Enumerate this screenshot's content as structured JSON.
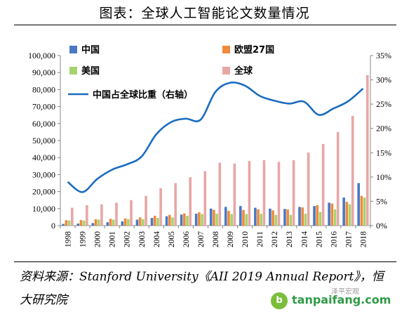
{
  "title": "图表：全球人工智能论文数量情况",
  "source": "资料来源：Stanford University《AII 2019 Annual Report》，恒大研究院",
  "watermark": {
    "text": "tanpaifang.com",
    "faint": "泽平宏观"
  },
  "colors": {
    "china": "#4a78c4",
    "eu27": "#ef8a3c",
    "usa": "#a7d36e",
    "global": "#e8a6a6",
    "share_line": "#1b6cc0"
  },
  "chart_data": {
    "type": "bar",
    "categories": [
      "1998",
      "1999",
      "2000",
      "2001",
      "2002",
      "2003",
      "2004",
      "2005",
      "2006",
      "2007",
      "2008",
      "2009",
      "2010",
      "2011",
      "2012",
      "2013",
      "2014",
      "2015",
      "2016",
      "2017",
      "2018"
    ],
    "series": [
      {
        "name": "中国",
        "key": "china",
        "axis": "left",
        "type": "bar",
        "values": [
          1000,
          1200,
          1500,
          2000,
          2500,
          3500,
          4500,
          5500,
          6500,
          7000,
          10000,
          11000,
          11500,
          10500,
          10000,
          9800,
          11000,
          11500,
          13500,
          16500,
          25000
        ]
      },
      {
        "name": "欧盟27国",
        "key": "eu27",
        "axis": "left",
        "type": "bar",
        "values": [
          3200,
          3300,
          3800,
          4000,
          4200,
          4800,
          5800,
          6300,
          7200,
          7800,
          9300,
          8700,
          9200,
          9600,
          9000,
          9500,
          10700,
          12000,
          13000,
          14000,
          17500
        ]
      },
      {
        "name": "美国",
        "key": "usa",
        "axis": "left",
        "type": "bar",
        "values": [
          3000,
          3000,
          3500,
          3500,
          3800,
          3800,
          4500,
          4800,
          5800,
          6800,
          7000,
          6800,
          6800,
          7000,
          6300,
          6300,
          7000,
          8000,
          9500,
          12500,
          16500
        ]
      },
      {
        "name": "全球",
        "key": "global",
        "axis": "left",
        "type": "bar",
        "values": [
          10500,
          12000,
          12500,
          13500,
          15000,
          17500,
          22000,
          25000,
          28500,
          32000,
          37000,
          36500,
          38000,
          38500,
          37500,
          38500,
          43000,
          48000,
          55000,
          64500,
          88500
        ]
      },
      {
        "name": "中国占全球比重（右轴）",
        "key": "share_line",
        "axis": "right",
        "type": "line",
        "values": [
          9.0,
          6.9,
          9.6,
          11.5,
          12.6,
          14.2,
          18.8,
          21.3,
          22.0,
          21.8,
          27.5,
          29.4,
          28.8,
          26.7,
          25.7,
          25.1,
          25.5,
          22.8,
          24.1,
          25.6,
          28.2
        ]
      }
    ],
    "y_left": {
      "min": 0,
      "max": 100000,
      "step": 10000,
      "ticks": [
        "0",
        "10,000",
        "20,000",
        "30,000",
        "40,000",
        "50,000",
        "60,000",
        "70,000",
        "80,000",
        "90,000",
        "100,000"
      ]
    },
    "y_right": {
      "min": 0,
      "max": 35,
      "step": 5,
      "ticks": [
        "0%",
        "5%",
        "10%",
        "15%",
        "20%",
        "25%",
        "30%",
        "35%"
      ]
    },
    "grid": false,
    "legend_position": "top"
  }
}
